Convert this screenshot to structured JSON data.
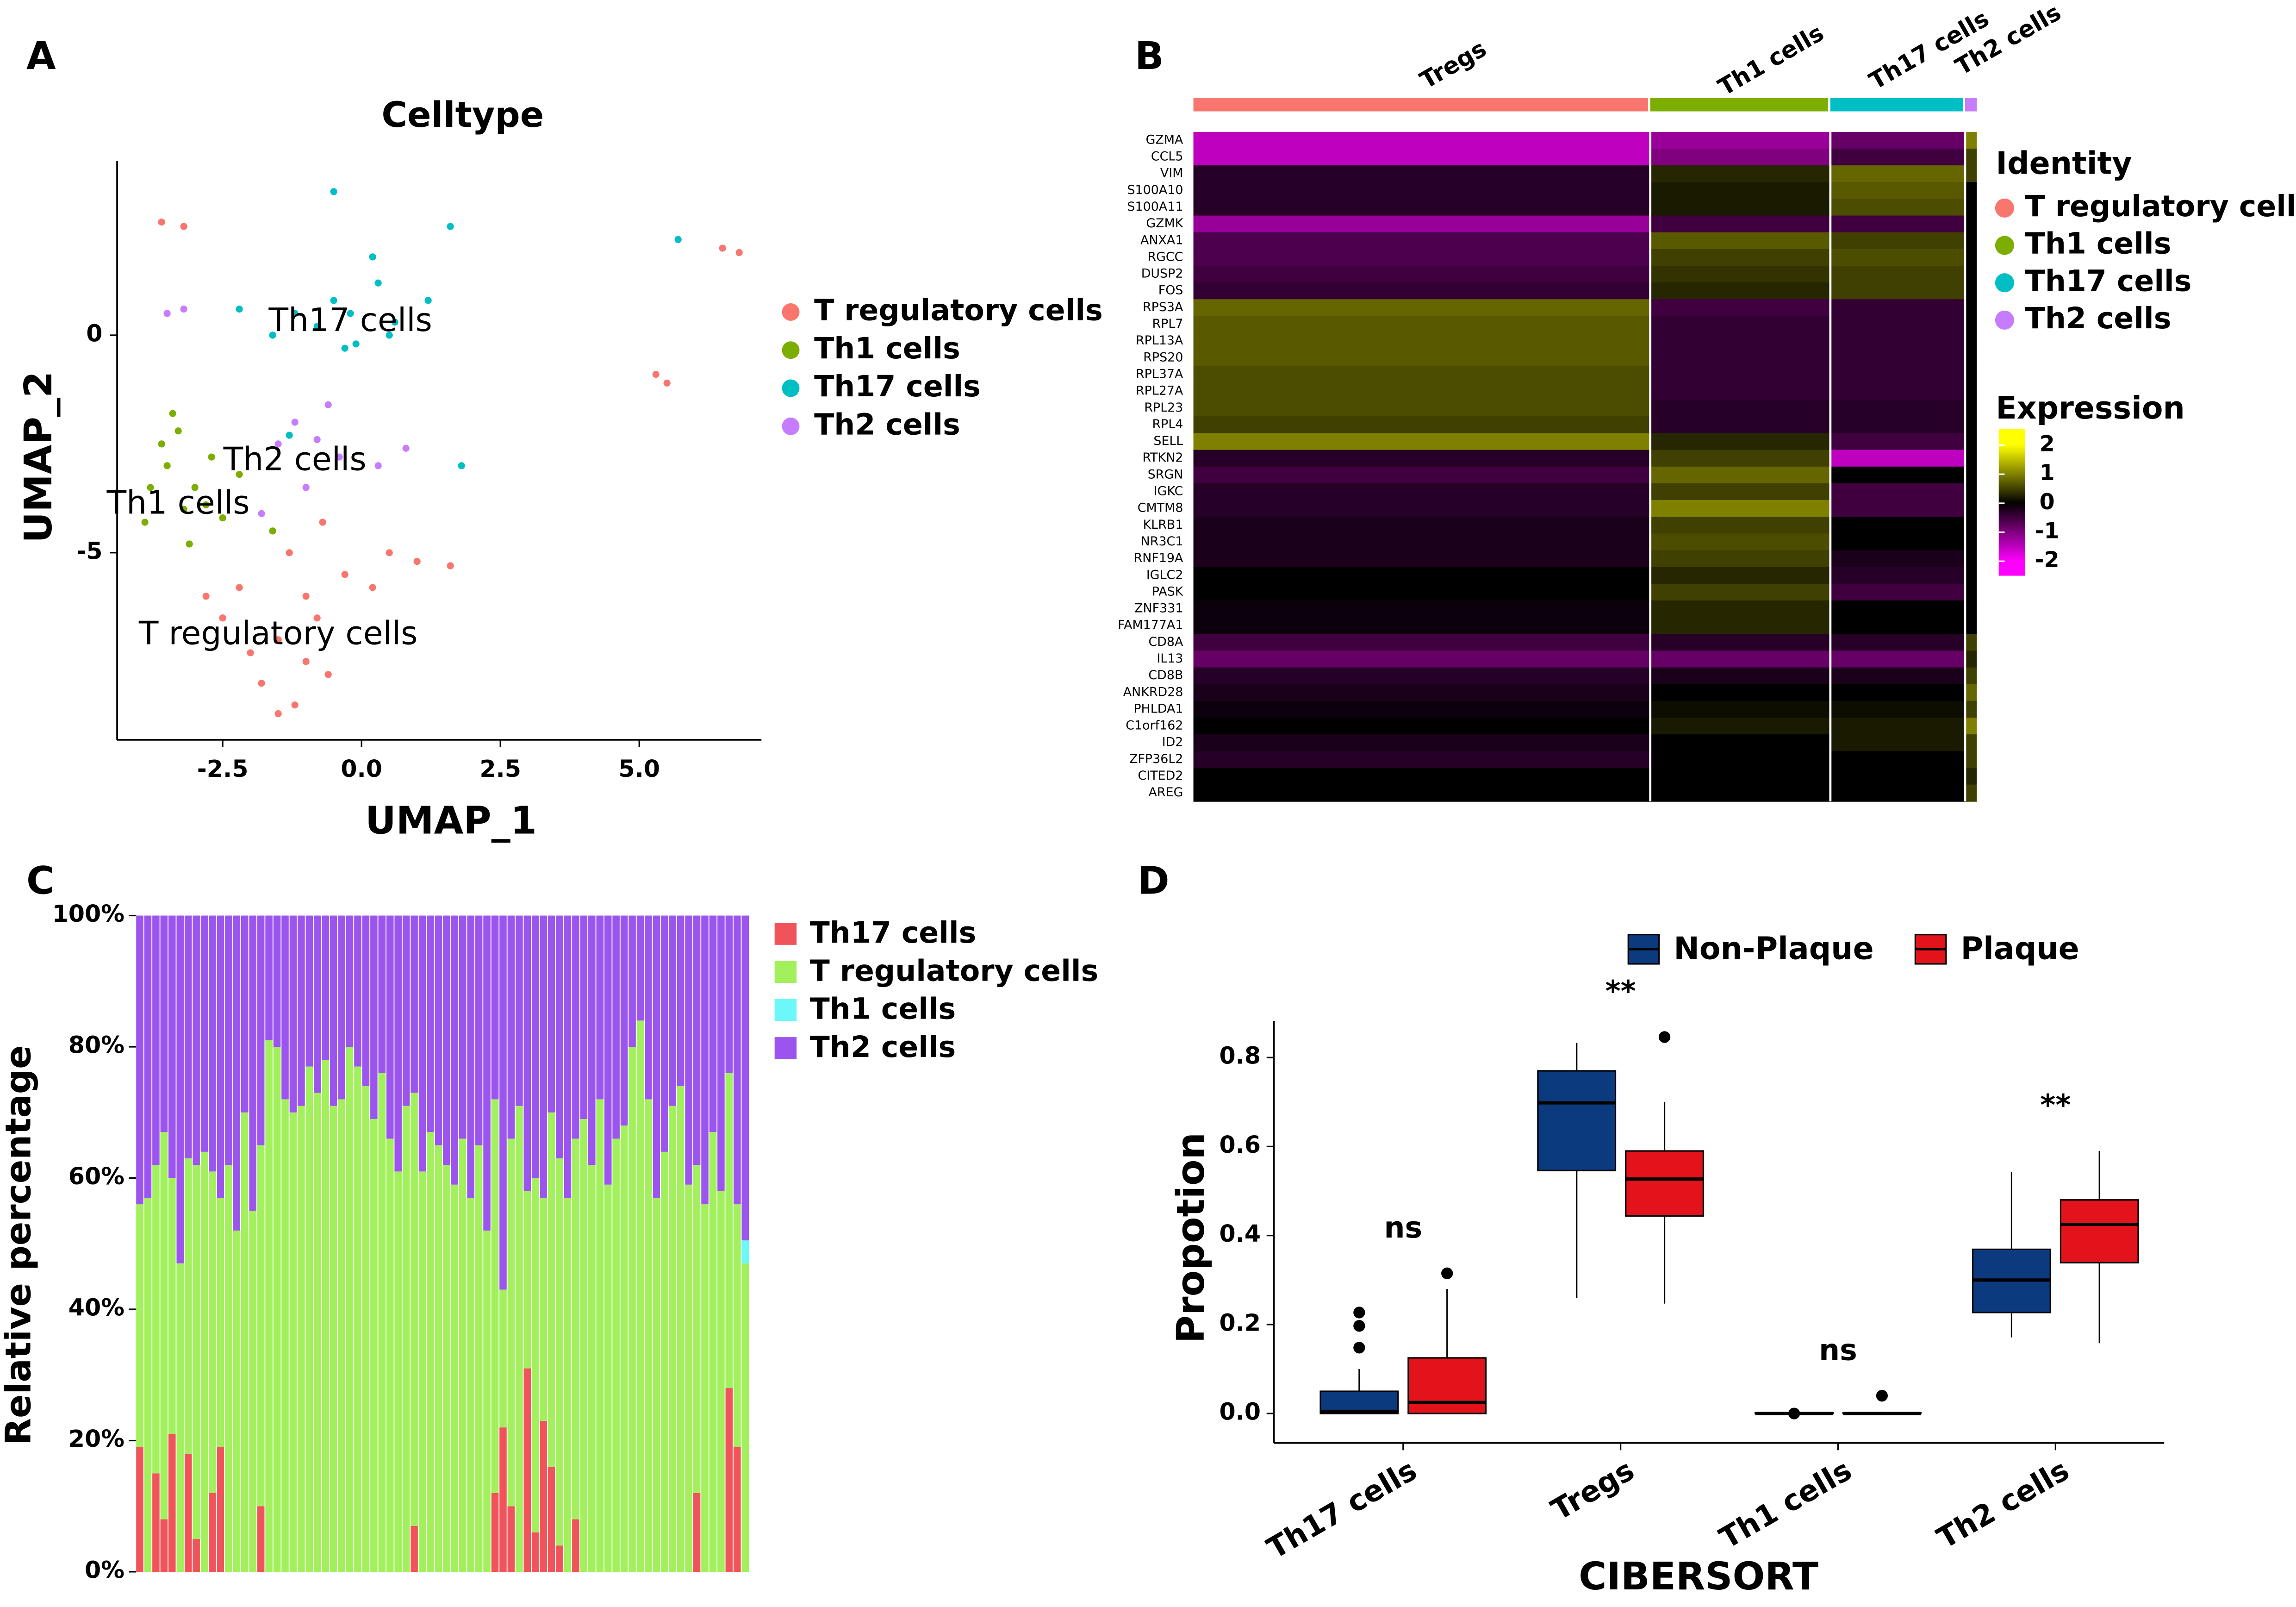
{
  "chart_data": [
    {
      "type": "scatter",
      "label": "A",
      "title": "Celltype",
      "xlabel": "UMAP_1",
      "ylabel": "UMAP_2",
      "xlim": [
        -4.4,
        7.2
      ],
      "ylim": [
        -9.3,
        4.0
      ],
      "xticks": [
        -2.5,
        {
          "value": 0,
          "label": "0.0"
        },
        2.5,
        {
          "value": 5,
          "label": "5.0"
        }
      ],
      "yticks": [
        0,
        -5
      ],
      "annotations": [
        "Th17 cells",
        "Th2 cells",
        "Th1 cells",
        "T regulatory cells"
      ],
      "series": [
        {
          "name": "T regulatory cells",
          "color": "#F8766D",
          "x": [
            -1.5,
            -2.5,
            -1,
            -1.8,
            -1.2,
            -0.8,
            -0.3,
            0.5,
            1,
            1.6,
            -2.8,
            -2,
            -1.5,
            -0.6,
            0.2,
            -2.2,
            -1,
            -3.6,
            -3.2,
            5.3,
            5.5,
            6.5,
            6.8,
            -1.3,
            -0.7
          ],
          "y": [
            -7,
            -6.5,
            -7.5,
            -8,
            -8.5,
            -6.5,
            -5.5,
            -5,
            -5.2,
            -5.3,
            -6,
            -7.3,
            -8.7,
            -7.8,
            -5.8,
            -5.8,
            -6,
            2.6,
            2.5,
            -0.9,
            -1.1,
            2.0,
            1.9,
            -5,
            -4.3
          ]
        },
        {
          "name": "Th1 cells",
          "color": "#7CAE00",
          "x": [
            -3.5,
            -3.8,
            -3.2,
            -3.6,
            -3,
            -3.3,
            -3.9,
            -2.7,
            -3.1,
            -2.5,
            -3.4,
            -2.8,
            -2.2,
            -1.6
          ],
          "y": [
            -3,
            -3.5,
            -4,
            -2.5,
            -3.5,
            -2.2,
            -4.3,
            -2.8,
            -4.8,
            -4.2,
            -1.8,
            -3.9,
            -3.2,
            -4.5
          ]
        },
        {
          "name": "Th17 cells",
          "color": "#00BFC4",
          "x": [
            -0.2,
            -0.5,
            0.3,
            -0.1,
            0.6,
            -0.8,
            0.2,
            -1.2,
            -1.6,
            1.2,
            -2.2,
            -0.5,
            1.6,
            5.7,
            1.8,
            -1.3,
            0.5,
            -0.3
          ],
          "y": [
            0.5,
            0.8,
            1.2,
            -0.2,
            0.3,
            0.2,
            1.8,
            0.5,
            0,
            0.8,
            0.6,
            3.3,
            2.5,
            2.2,
            -3,
            -2.3,
            0,
            -0.3
          ]
        },
        {
          "name": "Th2 cells",
          "color": "#C77CFF",
          "x": [
            -3.5,
            -3.2,
            -1.5,
            -1.2,
            -0.8,
            -0.4,
            0.3,
            -1.0,
            -1.8,
            0.8,
            -0.6
          ],
          "y": [
            0.5,
            0.6,
            -2.5,
            -2.0,
            -2.4,
            -2.8,
            -3,
            -3.5,
            -4.1,
            -2.6,
            -1.6
          ]
        }
      ]
    },
    {
      "type": "heatmap",
      "label": "B",
      "columns": [
        "Tregs",
        "Th1 cells",
        "Th17 cells",
        "Th2 cells"
      ],
      "column_colors": [
        "#F8766D",
        "#7CAE00",
        "#00BFC4",
        "#C77CFF"
      ],
      "rows": [
        "GZMA",
        "CCL5",
        "VIM",
        "S100A10",
        "S100A11",
        "GZMK",
        "ANXA1",
        "RGCC",
        "DUSP2",
        "FOS",
        "RPS3A",
        "RPL7",
        "RPL13A",
        "RPS20",
        "RPL37A",
        "RPL27A",
        "RPL23",
        "RPL4",
        "SELL",
        "RTKN2",
        "SRGN",
        "IGKC",
        "CMTM8",
        "KLRB1",
        "NR3C1",
        "RNF19A",
        "IGLC2",
        "PASK",
        "ZNF331",
        "FAM177A1",
        "CD8A",
        "IL13",
        "CD8B",
        "ANKRD28",
        "PHLDA1",
        "C1orf162",
        "ID2",
        "ZFP36L2",
        "CITED2",
        "AREG"
      ],
      "values": [
        [
          -1.5,
          -1.2,
          -0.8,
          1
        ],
        [
          -1.5,
          -1,
          -0.5,
          0.5
        ],
        [
          -0.3,
          0.3,
          0.8,
          0.5
        ],
        [
          -0.3,
          0.2,
          0.7,
          0
        ],
        [
          -0.3,
          0.2,
          0.6,
          0
        ],
        [
          -1.2,
          -0.5,
          -0.5,
          0
        ],
        [
          -0.6,
          0.7,
          0.5,
          0
        ],
        [
          -0.6,
          0.5,
          0.6,
          0
        ],
        [
          -0.5,
          0.4,
          0.5,
          0
        ],
        [
          -0.4,
          0.3,
          0.5,
          0
        ],
        [
          0.8,
          -0.5,
          -0.4,
          0
        ],
        [
          0.7,
          -0.4,
          -0.4,
          0
        ],
        [
          0.7,
          -0.4,
          -0.4,
          0
        ],
        [
          0.7,
          -0.4,
          -0.4,
          0
        ],
        [
          0.6,
          -0.4,
          -0.4,
          0
        ],
        [
          0.6,
          -0.4,
          -0.4,
          0
        ],
        [
          0.6,
          -0.3,
          -0.3,
          0
        ],
        [
          0.5,
          -0.3,
          -0.3,
          0
        ],
        [
          1,
          0.3,
          -0.5,
          0
        ],
        [
          -0.3,
          0.5,
          -1.5,
          0
        ],
        [
          -0.5,
          0.8,
          0,
          0
        ],
        [
          -0.3,
          0.5,
          -0.5,
          0
        ],
        [
          -0.3,
          1,
          -0.5,
          0
        ],
        [
          -0.2,
          0.5,
          0,
          0
        ],
        [
          -0.2,
          0.6,
          0,
          0
        ],
        [
          -0.2,
          0.5,
          -0.2,
          0
        ],
        [
          0,
          0.3,
          -0.3,
          0
        ],
        [
          0,
          0.5,
          -0.5,
          0
        ],
        [
          -0.1,
          0.3,
          0,
          0
        ],
        [
          -0.1,
          0.3,
          0,
          0
        ],
        [
          -0.5,
          -0.3,
          -0.3,
          0.5
        ],
        [
          -0.8,
          -0.8,
          -0.8,
          0.3
        ],
        [
          -0.3,
          -0.2,
          -0.2,
          0.5
        ],
        [
          -0.2,
          0,
          0,
          0.8
        ],
        [
          -0.1,
          0.1,
          0.1,
          0.5
        ],
        [
          0,
          0.2,
          0.2,
          1
        ],
        [
          -0.2,
          0,
          0.2,
          0.5
        ],
        [
          -0.3,
          0,
          0,
          0.5
        ],
        [
          0,
          0,
          0,
          0.3
        ],
        [
          0,
          0,
          0,
          0.5
        ]
      ],
      "identity_legend": {
        "title": "Identity",
        "names": [
          "T regulatory cells",
          "Th1 cells",
          "Th17 cells",
          "Th2 cells"
        ],
        "colors": [
          "#F8766D",
          "#7CAE00",
          "#00BFC4",
          "#C77CFF"
        ]
      },
      "colorbar": {
        "title": "Expression",
        "clim": [
          -2.5,
          2.55
        ],
        "ticks": [
          2,
          1,
          0,
          -1,
          -2
        ],
        "low_color": "#FF00FF",
        "mid_color": "#000000",
        "high_color": "#FFFF00"
      }
    },
    {
      "type": "stacked_bar",
      "label": "C",
      "ylabel": "Relative percentage",
      "ylim": [
        0,
        100
      ],
      "yticks": [
        {
          "value": 0,
          "label": "0%"
        },
        {
          "value": 20,
          "label": "20%"
        },
        {
          "value": 40,
          "label": "40%"
        },
        {
          "value": 60,
          "label": "60%"
        },
        {
          "value": 80,
          "label": "80%"
        },
        {
          "value": 100,
          "label": "100%"
        }
      ],
      "series": [
        {
          "name": "Th17 cells",
          "color": "#F0545A",
          "values": [
            19,
            0,
            15,
            8,
            21,
            0,
            18,
            5,
            0,
            12,
            19,
            0,
            0,
            0,
            0,
            10,
            0,
            0,
            0,
            0,
            0,
            0,
            0,
            0,
            0,
            0,
            0,
            0,
            0,
            0,
            0,
            0,
            0,
            0,
            7,
            0,
            0,
            0,
            0,
            0,
            0,
            0,
            0,
            0,
            12,
            22,
            10,
            0,
            31,
            6,
            23,
            16,
            4,
            0,
            8,
            0,
            0,
            0,
            0,
            0,
            0,
            0,
            0,
            0,
            0,
            0,
            0,
            0,
            0,
            12,
            0,
            0,
            0,
            28,
            19,
            0
          ]
        },
        {
          "name": "T regulatory cells",
          "color": "#A2F05C",
          "values": [
            37,
            57,
            47,
            59,
            39,
            47,
            45,
            57,
            64,
            49,
            38,
            62,
            52,
            70,
            55,
            55,
            81,
            80,
            72,
            70,
            71,
            77,
            73,
            78,
            71,
            72,
            80,
            77,
            74,
            69,
            76,
            66,
            61,
            71,
            66,
            61,
            67,
            65,
            62,
            59,
            66,
            57,
            65,
            52,
            60,
            21,
            56,
            71,
            27,
            54,
            34,
            54,
            59,
            57,
            58,
            69,
            62,
            72,
            59,
            66,
            68,
            80,
            84,
            72,
            57,
            64,
            71,
            74,
            59,
            50,
            56,
            67,
            58,
            48,
            37,
            47
          ]
        },
        {
          "name": "Th1 cells",
          "color": "#6CF8F8",
          "values": [
            0,
            0,
            0,
            0,
            0,
            0,
            0,
            0,
            0,
            0,
            0,
            0,
            0,
            0,
            0,
            0,
            0,
            0,
            0,
            0,
            0,
            0,
            0,
            0,
            0,
            0,
            0,
            0,
            0,
            0,
            0,
            0,
            0,
            0,
            0,
            0,
            0,
            0,
            0,
            0,
            0,
            0,
            0,
            0,
            0,
            0,
            0,
            0,
            0,
            0,
            0,
            0,
            0,
            0,
            0,
            0,
            0,
            0,
            0,
            0,
            0,
            0,
            0,
            0,
            0,
            0,
            0,
            0,
            0,
            0,
            0,
            0,
            0,
            0,
            0,
            3.5
          ]
        },
        {
          "name": "Th2 cells",
          "color": "#9B55EE",
          "values": [
            44,
            43,
            38,
            33,
            40,
            53,
            37,
            38,
            36,
            39,
            43,
            38,
            48,
            30,
            45,
            35,
            19,
            20,
            28,
            30,
            29,
            23,
            27,
            22,
            29,
            28,
            20,
            23,
            26,
            31,
            24,
            34,
            39,
            29,
            27,
            39,
            33,
            35,
            38,
            41,
            34,
            43,
            35,
            48,
            28,
            57,
            34,
            29,
            42,
            40,
            43,
            30,
            37,
            43,
            34,
            31,
            38,
            28,
            41,
            34,
            32,
            20,
            16,
            28,
            43,
            36,
            29,
            26,
            41,
            38,
            44,
            33,
            42,
            24,
            44,
            49.5
          ]
        }
      ]
    },
    {
      "type": "box",
      "label": "D",
      "xlabel": "CIBERSORT",
      "ylabel": "Propotion",
      "categories": [
        "Th17 cells",
        "Tregs",
        "Th1 cells",
        "Th2 cells"
      ],
      "significance": [
        "ns",
        "**",
        "ns",
        "**"
      ],
      "ylim": [
        -0.066,
        0.882
      ],
      "yticks": [
        {
          "value": 0,
          "label": "0.0"
        },
        0.2,
        0.4,
        0.6,
        0.8
      ],
      "series": [
        {
          "name": "Non-Plaque",
          "color": "#0C3A7E",
          "values": [
            {
              "min": 0,
              "q1": 0,
              "median": 0.005,
              "q3": 0.05,
              "max": 0.1,
              "outliers": [
                0.148,
                0.197,
                0.227
              ]
            },
            {
              "min": 0.26,
              "q1": 0.546,
              "median": 0.698,
              "q3": 0.77,
              "max": 0.833,
              "outliers": []
            },
            {
              "min": 0,
              "q1": 0,
              "median": 0,
              "q3": 0.002,
              "max": 0.004,
              "outliers": [
                0
              ]
            },
            {
              "min": 0.171,
              "q1": 0.227,
              "median": 0.3,
              "q3": 0.369,
              "max": 0.543,
              "outliers": []
            }
          ]
        },
        {
          "name": "Plaque",
          "color": "#E3131B",
          "values": [
            {
              "min": 0,
              "q1": 0,
              "median": 0.025,
              "q3": 0.125,
              "max": 0.28,
              "outliers": [
                0.315
              ]
            },
            {
              "min": 0.247,
              "q1": 0.444,
              "median": 0.527,
              "q3": 0.59,
              "max": 0.7,
              "outliers": [
                0.846
              ]
            },
            {
              "min": 0,
              "q1": 0,
              "median": 0,
              "q3": 0.002,
              "max": 0.004,
              "outliers": [
                0.04
              ]
            },
            {
              "min": 0.158,
              "q1": 0.339,
              "median": 0.425,
              "q3": 0.48,
              "max": 0.59,
              "outliers": []
            }
          ]
        }
      ]
    }
  ]
}
